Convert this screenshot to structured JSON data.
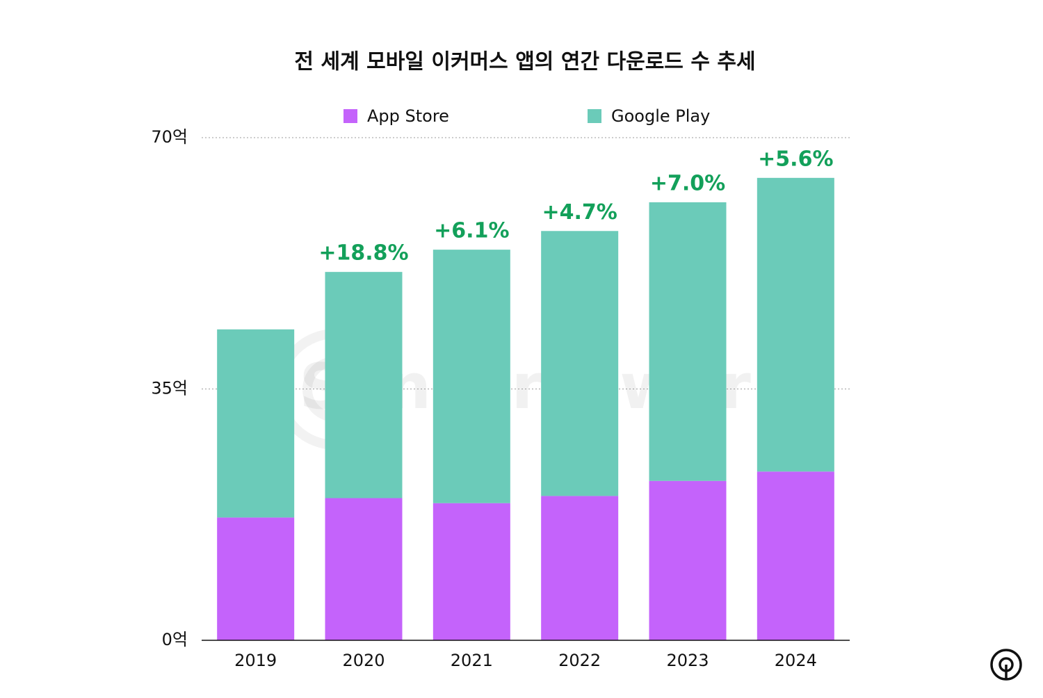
{
  "chart_data": {
    "type": "stacked_bar",
    "title": "전 세계 모바일 이커머스 앱의 연간 다운로드 수 추세",
    "watermark": "SensorTower",
    "categories": [
      "2019",
      "2020",
      "2021",
      "2022",
      "2023",
      "2024"
    ],
    "series": [
      {
        "name": "App Store",
        "color": "#c463fb",
        "values": [
          17.1,
          19.8,
          19.1,
          20.1,
          22.2,
          23.5
        ]
      },
      {
        "name": "Google Play",
        "color": "#6bcbb9",
        "values": [
          26.2,
          31.5,
          35.3,
          36.9,
          38.8,
          40.9
        ]
      }
    ],
    "growth_labels": [
      null,
      "+18.8%",
      "+6.1%",
      "+4.7%",
      "+7.0%",
      "+5.6%"
    ],
    "growth_label_color": "#13a05a",
    "ylim": [
      0,
      70
    ],
    "yticks": [
      {
        "value": 0,
        "label": "0억"
      },
      {
        "value": 35,
        "label": "35억"
      },
      {
        "value": 70,
        "label": "70억"
      }
    ],
    "grid": true
  }
}
